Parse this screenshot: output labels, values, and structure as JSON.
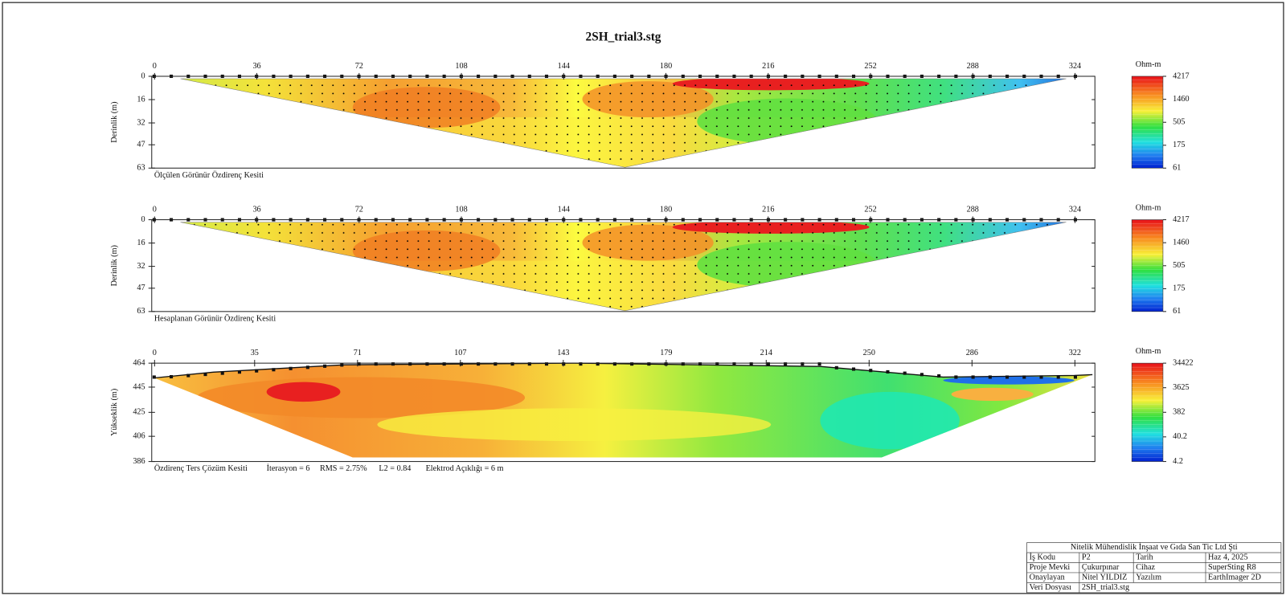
{
  "title": "2SH_trial3.stg",
  "panels": [
    {
      "caption": "Ölçülen Görünür Özdirenç Kesiti",
      "y_label": "Derinlik (m)",
      "xlim": [
        -1,
        331
      ],
      "xticks": [
        0,
        36,
        72,
        108,
        144,
        180,
        216,
        252,
        288,
        324
      ],
      "ylim": [
        63,
        0
      ],
      "yticks": [
        0,
        16,
        32,
        47,
        63
      ],
      "colorbar": {
        "unit": "Ohm-m",
        "scale": "log",
        "clim": [
          61,
          4217
        ],
        "ticks": [
          4217,
          1460,
          505,
          175,
          61
        ]
      }
    },
    {
      "caption": "Hesaplanan Görünür Özdirenç Kesiti",
      "y_label": "Derinlik (m)",
      "xlim": [
        -1,
        331
      ],
      "xticks": [
        0,
        36,
        72,
        108,
        144,
        180,
        216,
        252,
        288,
        324
      ],
      "ylim": [
        63,
        0
      ],
      "yticks": [
        0,
        16,
        32,
        47,
        63
      ],
      "colorbar": {
        "unit": "Ohm-m",
        "scale": "log",
        "clim": [
          61,
          4217
        ],
        "ticks": [
          4217,
          1460,
          505,
          175,
          61
        ]
      }
    },
    {
      "caption": "Özdirenç Ters Çözüm Kesiti",
      "y_label": "Yükseklik (m)",
      "notes": [
        "İterasyon = 6",
        "RMS = 2.75%",
        "L2 = 0.84",
        "Elektrod Açıklığı = 6 m"
      ],
      "xlim": [
        -1,
        329
      ],
      "xticks": [
        0,
        35,
        71,
        107,
        143,
        179,
        214,
        250,
        286,
        322
      ],
      "ylim": [
        386,
        464
      ],
      "yticks": [
        464,
        445,
        425,
        406,
        386
      ],
      "colorbar": {
        "unit": "Ohm-m",
        "scale": "log",
        "clim": [
          4.2,
          34422
        ],
        "ticks": [
          34422,
          3625,
          382,
          40.2,
          4.2
        ]
      }
    }
  ],
  "info_table": {
    "header": "Nitelik Mühendislik İnşaat ve Gıda San Tic Ltd Şti",
    "rows": [
      [
        "İş Kodu",
        "P2",
        "Tarih",
        "Haz 4, 2025"
      ],
      [
        "Proje Mevki",
        "Çukurpınar",
        "Cihaz",
        "SuperSting R8"
      ],
      [
        "Onaylayan",
        "Nitel YILDIZ",
        "Yazılım",
        "EarthImager 2D"
      ],
      [
        "Veri Dosyası",
        "2SH_trial3.stg"
      ]
    ]
  }
}
